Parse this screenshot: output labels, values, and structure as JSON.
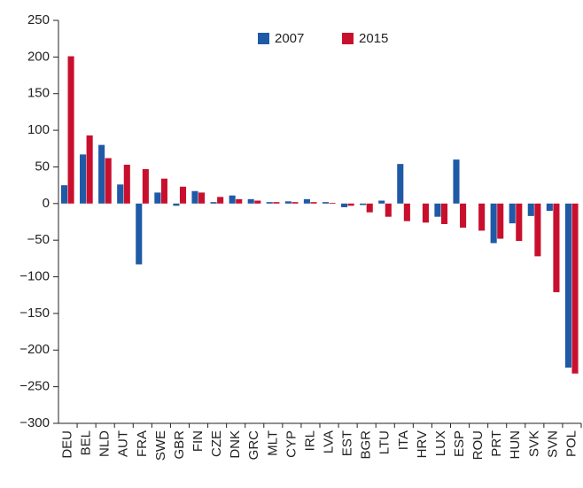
{
  "chart_data": {
    "type": "bar",
    "categories": [
      "DEU",
      "BEL",
      "NLD",
      "AUT",
      "FRA",
      "SWE",
      "GBR",
      "FIN",
      "CZE",
      "DNK",
      "GRC",
      "MLT",
      "CYP",
      "IRL",
      "LVA",
      "EST",
      "BGR",
      "LTU",
      "ITA",
      "HRV",
      "LUX",
      "ESP",
      "ROU",
      "PRT",
      "HUN",
      "SVK",
      "SVN",
      "POL"
    ],
    "series": [
      {
        "name": "2007",
        "color": "#1f5aa6",
        "values": [
          25,
          67,
          80,
          26,
          -83,
          15,
          -3,
          17,
          2,
          11,
          6,
          2,
          3,
          6,
          2,
          -5,
          -2,
          4,
          54,
          0,
          -18,
          60,
          0,
          -54,
          -27,
          -17,
          -10,
          -224
        ]
      },
      {
        "name": "2015",
        "color": "#c8102e",
        "values": [
          201,
          93,
          62,
          53,
          47,
          34,
          23,
          15,
          9,
          6,
          4,
          2,
          2,
          2,
          1,
          -3,
          -12,
          -18,
          -24,
          -26,
          -28,
          -33,
          -37,
          -48,
          -51,
          -72,
          -121,
          -232
        ]
      }
    ],
    "ylim": [
      -300,
      250
    ],
    "yticks": [
      {
        "value": -300,
        "label": "−300"
      },
      {
        "value": -250,
        "label": "−250"
      },
      {
        "value": -200,
        "label": "−200"
      },
      {
        "value": -150,
        "label": "−150"
      },
      {
        "value": -100,
        "label": "−100"
      },
      {
        "value": -50,
        "label": "−50"
      },
      0,
      50,
      100,
      150,
      200,
      250
    ],
    "legend": "upper center"
  }
}
